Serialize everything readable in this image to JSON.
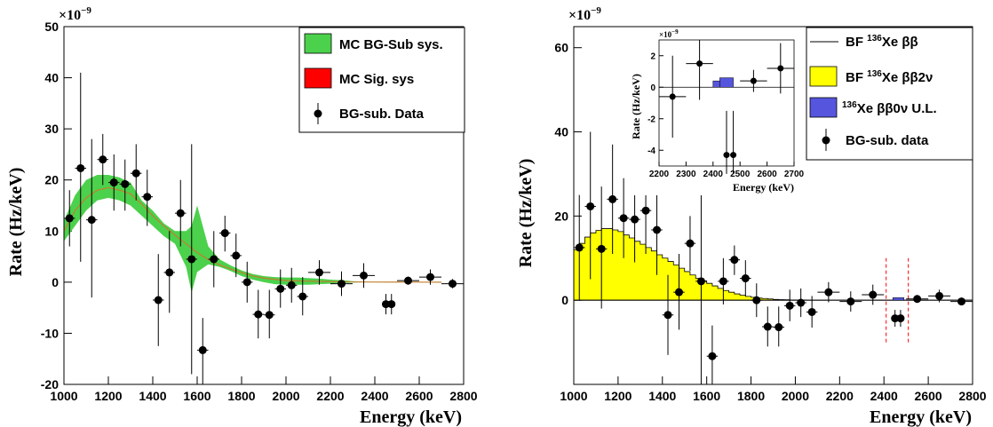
{
  "colors": {
    "band_bg": "#4cd14c",
    "band_sig": "#ff0000",
    "fit_line": "#c08030",
    "two_nu_fill": "#ffff00",
    "zero_nu_fill": "#5555dd",
    "roi_line": "#ff0000",
    "axis": "#000000"
  },
  "chart_data": [
    {
      "type": "scatter",
      "xlabel": "Energy (keV)",
      "ylabel": "Rate (Hz/keV)",
      "scale_label": "×10",
      "scale_exponent": "−9",
      "xlim": [
        1000,
        2800
      ],
      "ylim": [
        -20,
        50
      ],
      "xticks": [
        1000,
        1200,
        1400,
        1600,
        1800,
        2000,
        2200,
        2400,
        2600,
        2800
      ],
      "yticks": [
        -20,
        -10,
        0,
        10,
        20,
        30,
        40,
        50
      ],
      "grid": false,
      "legend_position": "top-right",
      "legend": [
        {
          "label": "MC BG-Sub sys.",
          "symbol": "box-green"
        },
        {
          "label": "MC Sig. sys",
          "symbol": "box-red"
        },
        {
          "label": "BG-sub. Data",
          "symbol": "marker"
        }
      ],
      "band": {
        "x": [
          1000,
          1050,
          1100,
          1150,
          1200,
          1250,
          1300,
          1350,
          1400,
          1450,
          1500,
          1550,
          1575,
          1600,
          1650,
          1700,
          1750,
          1800,
          1850,
          1900,
          1950,
          2000,
          2050,
          2100,
          2150,
          2200,
          2250,
          2300,
          2350
        ],
        "lower": [
          8,
          11,
          14,
          16,
          16.5,
          16,
          15,
          13,
          11,
          9,
          7.5,
          3,
          -2,
          2,
          3.5,
          3,
          2.2,
          1.2,
          0.5,
          0,
          -0.4,
          -0.5,
          -0.5,
          -0.5,
          -0.4,
          -0.3,
          -0.2,
          -0.1,
          0
        ],
        "upper": [
          12,
          17,
          20,
          21,
          21,
          20.5,
          19.5,
          16,
          14,
          11.5,
          10,
          10,
          11,
          15,
          7,
          4.5,
          3.3,
          2.3,
          1.6,
          1.2,
          1,
          0.9,
          0.9,
          0.8,
          0.7,
          0.5,
          0.4,
          0.2,
          0.1
        ]
      },
      "fit": {
        "x": [
          1000,
          1050,
          1100,
          1150,
          1200,
          1250,
          1300,
          1350,
          1400,
          1450,
          1500,
          1550,
          1600,
          1650,
          1700,
          1750,
          1800,
          1850,
          1900,
          2000,
          2100,
          2200,
          2300,
          2400,
          2500,
          2600,
          2700
        ],
        "y": [
          10,
          14,
          16.5,
          18,
          18.5,
          18,
          17.3,
          15.3,
          13,
          11,
          9.2,
          7.5,
          5.8,
          4.4,
          3.4,
          2.6,
          1.9,
          1.2,
          0.8,
          0.3,
          0.2,
          0.1,
          0.05,
          0.03,
          0.02,
          0.01,
          0
        ]
      },
      "points": [
        {
          "x": 1025,
          "y": 12.5,
          "ylo": 7,
          "yhi": 18,
          "xerr": 25
        },
        {
          "x": 1075,
          "y": 22.3,
          "ylo": 4,
          "yhi": 41,
          "xerr": 25
        },
        {
          "x": 1125,
          "y": 12.2,
          "ylo": -3,
          "yhi": 28,
          "xerr": 25
        },
        {
          "x": 1175,
          "y": 24,
          "ylo": 19,
          "yhi": 29,
          "xerr": 25
        },
        {
          "x": 1225,
          "y": 19.5,
          "ylo": 14,
          "yhi": 25,
          "xerr": 25
        },
        {
          "x": 1275,
          "y": 19.2,
          "ylo": 14,
          "yhi": 24,
          "xerr": 25
        },
        {
          "x": 1325,
          "y": 21.3,
          "ylo": 16,
          "yhi": 27,
          "xerr": 25
        },
        {
          "x": 1375,
          "y": 16.7,
          "ylo": 11,
          "yhi": 22,
          "xerr": 25
        },
        {
          "x": 1425,
          "y": -3.5,
          "ylo": -12.5,
          "yhi": 5.5,
          "xerr": 25
        },
        {
          "x": 1475,
          "y": 1.9,
          "ylo": -6,
          "yhi": 10,
          "xerr": 25
        },
        {
          "x": 1525,
          "y": 13.5,
          "ylo": 7,
          "yhi": 20,
          "xerr": 25
        },
        {
          "x": 1575,
          "y": 4.5,
          "ylo": -18,
          "yhi": 27,
          "xerr": 25
        },
        {
          "x": 1625,
          "y": -13.3,
          "ylo": -20,
          "yhi": -7,
          "xerr": 25
        },
        {
          "x": 1675,
          "y": 4.5,
          "ylo": -1,
          "yhi": 10,
          "xerr": 25
        },
        {
          "x": 1725,
          "y": 9.6,
          "ylo": 6,
          "yhi": 13,
          "xerr": 25
        },
        {
          "x": 1775,
          "y": 5.2,
          "ylo": 1,
          "yhi": 9.5,
          "xerr": 25
        },
        {
          "x": 1825,
          "y": 0,
          "ylo": -4,
          "yhi": 4,
          "xerr": 25
        },
        {
          "x": 1875,
          "y": -6.3,
          "ylo": -11,
          "yhi": -1.5,
          "xerr": 25
        },
        {
          "x": 1925,
          "y": -6.4,
          "ylo": -11,
          "yhi": -1.5,
          "xerr": 25
        },
        {
          "x": 1975,
          "y": -1.3,
          "ylo": -5,
          "yhi": 2.5,
          "xerr": 25
        },
        {
          "x": 2025,
          "y": -0.6,
          "ylo": -4,
          "yhi": 2.8,
          "xerr": 25
        },
        {
          "x": 2075,
          "y": -2.8,
          "ylo": -6.5,
          "yhi": 1,
          "xerr": 25
        },
        {
          "x": 2150,
          "y": 1.9,
          "ylo": -0.5,
          "yhi": 4.3,
          "xerr": 50
        },
        {
          "x": 2250,
          "y": -0.3,
          "ylo": -2.7,
          "yhi": 2.1,
          "xerr": 50
        },
        {
          "x": 2350,
          "y": 1.3,
          "ylo": -1.1,
          "yhi": 3.7,
          "xerr": 50
        },
        {
          "x": 2450,
          "y": -4.3,
          "ylo": -6.3,
          "yhi": -2.3,
          "xerr": 10
        },
        {
          "x": 2475,
          "y": -4.3,
          "ylo": -6.3,
          "yhi": -2.3,
          "xerr": 10
        },
        {
          "x": 2550,
          "y": 0.3,
          "ylo": -0.5,
          "yhi": 1.1,
          "xerr": 50
        },
        {
          "x": 2650,
          "y": 1,
          "ylo": -0.5,
          "yhi": 2.5,
          "xerr": 50
        },
        {
          "x": 2750,
          "y": -0.3,
          "ylo": -1.2,
          "yhi": 0.6,
          "xerr": 50
        }
      ]
    },
    {
      "type": "bar",
      "xlabel": "Energy (keV)",
      "ylabel": "Rate (Hz/keV)",
      "scale_label": "×10",
      "scale_exponent": "−9",
      "xlim": [
        1000,
        2800
      ],
      "ylim": [
        -20,
        65
      ],
      "xticks": [
        1000,
        1200,
        1400,
        1600,
        1800,
        2000,
        2200,
        2400,
        2600,
        2800
      ],
      "yticks": [
        0,
        20,
        40,
        60
      ],
      "grid": false,
      "legend_position": "top-right",
      "legend": [
        {
          "prefix": "BF ",
          "sup": "136",
          "label": "Xe  ββ",
          "symbol": "line"
        },
        {
          "prefix": "BF ",
          "sup": "136",
          "label": "Xe  ββ2ν",
          "symbol": "box-yellow"
        },
        {
          "prefix": "",
          "sup": "136",
          "label": "Xe  ββ0ν U.L.",
          "symbol": "box-blue"
        },
        {
          "prefix": "",
          "sup": "",
          "label": "BG-sub. data",
          "symbol": "marker"
        }
      ],
      "histogram_2nu": {
        "bin_width": 25,
        "x_start": 1000,
        "values": [
          12,
          13.5,
          15,
          16,
          16.6,
          17,
          17,
          16.7,
          16.3,
          15.5,
          14.8,
          14,
          13.3,
          12.5,
          11.7,
          10.8,
          10,
          9.2,
          8.4,
          7.6,
          6.8,
          6,
          5.2,
          4.6,
          4,
          3.4,
          2.8,
          2.3,
          1.9,
          1.5,
          1.2,
          0.9,
          0.7,
          0.5,
          0.4,
          0.3,
          0.2,
          0.15,
          0.1,
          0.05,
          0.03,
          0.02,
          0.01,
          0,
          0,
          0,
          0,
          0,
          0,
          0,
          0,
          0,
          0,
          0,
          0,
          0,
          0,
          0,
          0,
          0,
          0,
          0,
          0,
          0,
          0,
          0,
          0,
          0,
          0,
          0,
          0,
          0
        ]
      },
      "zero_nu": {
        "x0": 2440,
        "x1": 2490,
        "value": 0.6
      },
      "roi": [
        2410,
        2510
      ],
      "roi_y": [
        -10,
        10
      ],
      "points": [
        {
          "x": 1025,
          "y": 12.5,
          "ylo": 0,
          "yhi": 25,
          "xerr": 25
        },
        {
          "x": 1075,
          "y": 22.3,
          "ylo": 5,
          "yhi": 40,
          "xerr": 25
        },
        {
          "x": 1125,
          "y": 12.2,
          "ylo": -2,
          "yhi": 27,
          "xerr": 25
        },
        {
          "x": 1175,
          "y": 24,
          "ylo": 11,
          "yhi": 37,
          "xerr": 25
        },
        {
          "x": 1225,
          "y": 19.5,
          "ylo": 10,
          "yhi": 29,
          "xerr": 25
        },
        {
          "x": 1275,
          "y": 19.2,
          "ylo": 9,
          "yhi": 29,
          "xerr": 25
        },
        {
          "x": 1325,
          "y": 21.3,
          "ylo": 11,
          "yhi": 32,
          "xerr": 25
        },
        {
          "x": 1375,
          "y": 16.7,
          "ylo": 6,
          "yhi": 27,
          "xerr": 25
        },
        {
          "x": 1425,
          "y": -3.5,
          "ylo": -13,
          "yhi": 6,
          "xerr": 25
        },
        {
          "x": 1475,
          "y": 1.9,
          "ylo": -7,
          "yhi": 11,
          "xerr": 25
        },
        {
          "x": 1525,
          "y": 13.5,
          "ylo": 7,
          "yhi": 20,
          "xerr": 25
        },
        {
          "x": 1575,
          "y": 4.5,
          "ylo": -20,
          "yhi": 44,
          "xerr": 25
        },
        {
          "x": 1625,
          "y": -13.3,
          "ylo": -20,
          "yhi": -6,
          "xerr": 25
        },
        {
          "x": 1675,
          "y": 4.5,
          "ylo": -1,
          "yhi": 10,
          "xerr": 25
        },
        {
          "x": 1725,
          "y": 9.6,
          "ylo": 6,
          "yhi": 13,
          "xerr": 25
        },
        {
          "x": 1775,
          "y": 5.2,
          "ylo": 1,
          "yhi": 9.5,
          "xerr": 25
        },
        {
          "x": 1825,
          "y": 0,
          "ylo": -4,
          "yhi": 4,
          "xerr": 25
        },
        {
          "x": 1875,
          "y": -6.3,
          "ylo": -11,
          "yhi": -1.5,
          "xerr": 25
        },
        {
          "x": 1925,
          "y": -6.4,
          "ylo": -11,
          "yhi": -1.5,
          "xerr": 25
        },
        {
          "x": 1975,
          "y": -1.3,
          "ylo": -5,
          "yhi": 2.5,
          "xerr": 25
        },
        {
          "x": 2025,
          "y": -0.6,
          "ylo": -4,
          "yhi": 2.8,
          "xerr": 25
        },
        {
          "x": 2075,
          "y": -2.8,
          "ylo": -6.5,
          "yhi": 1,
          "xerr": 25
        },
        {
          "x": 2150,
          "y": 1.9,
          "ylo": -0.5,
          "yhi": 4.3,
          "xerr": 50
        },
        {
          "x": 2250,
          "y": -0.3,
          "ylo": -2.7,
          "yhi": 2.1,
          "xerr": 50
        },
        {
          "x": 2350,
          "y": 1.3,
          "ylo": -1.1,
          "yhi": 3.7,
          "xerr": 50
        },
        {
          "x": 2450,
          "y": -4.3,
          "ylo": -6.3,
          "yhi": -2.3,
          "xerr": 10
        },
        {
          "x": 2475,
          "y": -4.3,
          "ylo": -6.3,
          "yhi": -2.3,
          "xerr": 10
        },
        {
          "x": 2550,
          "y": 0.3,
          "ylo": -0.5,
          "yhi": 1.1,
          "xerr": 50
        },
        {
          "x": 2650,
          "y": 1,
          "ylo": -0.5,
          "yhi": 2.5,
          "xerr": 50
        },
        {
          "x": 2750,
          "y": -0.3,
          "ylo": -1.2,
          "yhi": 0.6,
          "xerr": 50
        }
      ]
    },
    {
      "type": "bar",
      "xlabel": "Energy (keV)",
      "ylabel": "Rate (Hz/keV)",
      "scale_label": "×10",
      "scale_exponent": "−9",
      "xlim": [
        2200,
        2700
      ],
      "ylim": [
        -5,
        3
      ],
      "xticks": [
        2200,
        2300,
        2400,
        2500,
        2600,
        2700
      ],
      "yticks": [
        -4,
        -2,
        0,
        2
      ],
      "grid": false,
      "histogram_2nu": {
        "bin_width": 50,
        "x_start": 2200,
        "values": [
          0,
          0,
          0,
          0,
          0,
          0,
          0,
          0,
          0,
          0
        ]
      },
      "zero_nu": {
        "x0": 2425,
        "x1": 2475,
        "value": 0.6
      },
      "zero_nu_small": {
        "x0": 2400,
        "x1": 2425,
        "value": 0.4
      },
      "points": [
        {
          "x": 2250,
          "y": -0.6,
          "ylo": -3.2,
          "yhi": 2.0,
          "xerr": 50
        },
        {
          "x": 2350,
          "y": 1.5,
          "ylo": -0.8,
          "yhi": 3.0,
          "xerr": 50
        },
        {
          "x": 2450,
          "y": -4.3,
          "ylo": -5.5,
          "yhi": -1.5,
          "xerr": 10
        },
        {
          "x": 2475,
          "y": -4.3,
          "ylo": -5.5,
          "yhi": -1.5,
          "xerr": 10
        },
        {
          "x": 2550,
          "y": 0.4,
          "ylo": -0.3,
          "yhi": 1.1,
          "xerr": 50
        },
        {
          "x": 2650,
          "y": 1.2,
          "ylo": -0.4,
          "yhi": 2.8,
          "xerr": 50
        }
      ]
    }
  ]
}
